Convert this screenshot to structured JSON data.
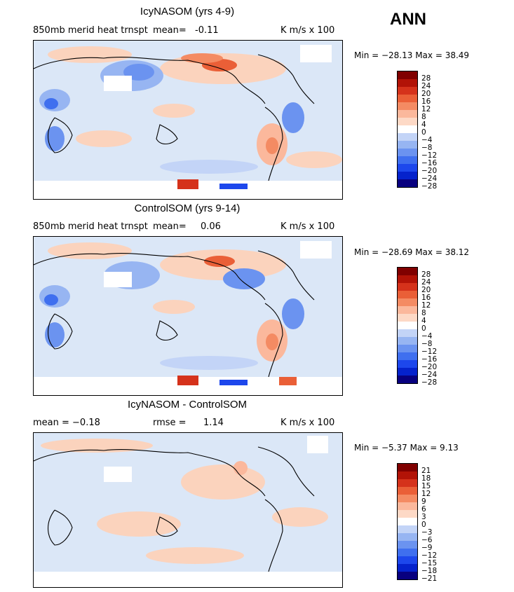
{
  "season": "ANN",
  "colors": {
    "scale": [
      "#08007f",
      "#0522cc",
      "#1d47ec",
      "#3f6fef",
      "#6b93f0",
      "#97b5f2",
      "#c3d4f7",
      "#ffffff",
      "#fdd9c6",
      "#fbb89c",
      "#f48b63",
      "#ea5f37",
      "#d5321b",
      "#b21307",
      "#800000"
    ],
    "land_outline": "#000000"
  },
  "panels": [
    {
      "title": "IcyNASOM (yrs 4-9)",
      "left_label": "850mb merid heat trnspt",
      "mean_label": "mean=",
      "mean_value": "-0.11",
      "units": "K m/s x 100",
      "min_max": "Min = −28.13  Max =   38.49",
      "ticks": [
        "28",
        "24",
        "20",
        "16",
        "12",
        "8",
        "4",
        "0",
        "−4",
        "−8",
        "−12",
        "−16",
        "−20",
        "−24",
        "−28"
      ]
    },
    {
      "title": "ControlSOM (yrs 9-14)",
      "left_label": "850mb merid heat trnspt",
      "mean_label": "mean=",
      "mean_value": "0.06",
      "units": "K m/s x 100",
      "min_max": "Min = −28.69  Max =   38.12",
      "ticks": [
        "28",
        "24",
        "20",
        "16",
        "12",
        "8",
        "4",
        "0",
        "−4",
        "−8",
        "−12",
        "−16",
        "−20",
        "−24",
        "−28"
      ]
    },
    {
      "title": "IcyNASOM - ControlSOM",
      "left_label": "mean =   −0.18",
      "mean_label": "rmse =",
      "mean_value": "1.14",
      "units": "K m/s x 100",
      "min_max": "Min =   −5.37  Max =     9.13",
      "ticks": [
        "21",
        "18",
        "15",
        "12",
        "9",
        "6",
        "3",
        "0",
        "−3",
        "−6",
        "−9",
        "−12",
        "−15",
        "−18",
        "−21"
      ]
    }
  ]
}
